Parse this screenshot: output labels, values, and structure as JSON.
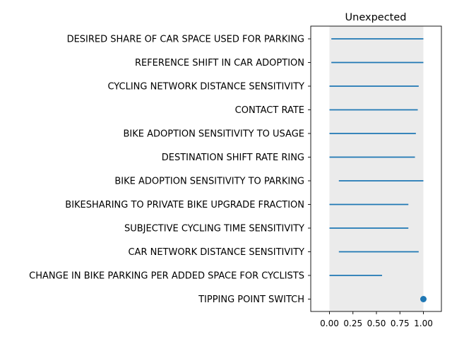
{
  "chart_data": {
    "type": "range",
    "title": "Unexpected",
    "xlabel": "",
    "ylabel": "",
    "xlim": [
      -0.1,
      1.1
    ],
    "x_ticks": [
      0.0,
      0.25,
      0.5,
      0.75,
      1.0
    ],
    "x_tick_labels": [
      "0.00",
      "0.25",
      "0.50",
      "0.75",
      "1.00"
    ],
    "shaded_band": [
      0.0,
      1.0
    ],
    "band_color": "#ebebeb",
    "series_color": "#1f77b4",
    "grid": false,
    "rows": [
      {
        "label": "DESIRED SHARE OF CAR SPACE USED FOR PARKING",
        "low": 0.02,
        "high": 1.0
      },
      {
        "label": "REFERENCE SHIFT IN CAR ADOPTION",
        "low": 0.02,
        "high": 1.0
      },
      {
        "label": "CYCLING NETWORK DISTANCE SENSITIVITY",
        "low": 0.0,
        "high": 0.95
      },
      {
        "label": "CONTACT RATE",
        "low": 0.0,
        "high": 0.94
      },
      {
        "label": "BIKE ADOPTION SENSITIVITY TO USAGE",
        "low": 0.0,
        "high": 0.92
      },
      {
        "label": "DESTINATION SHIFT RATE RING",
        "low": 0.0,
        "high": 0.91
      },
      {
        "label": "BIKE ADOPTION SENSITIVITY TO PARKING",
        "low": 0.1,
        "high": 1.0
      },
      {
        "label": "BIKESHARING TO PRIVATE BIKE UPGRADE FRACTION",
        "low": 0.0,
        "high": 0.84
      },
      {
        "label": "SUBJECTIVE CYCLING TIME SENSITIVITY",
        "low": 0.0,
        "high": 0.84
      },
      {
        "label": "CAR NETWORK DISTANCE SENSITIVITY",
        "low": 0.1,
        "high": 0.95
      },
      {
        "label": "CHANGE IN BIKE PARKING PER ADDED SPACE FOR CYCLISTS",
        "low": 0.0,
        "high": 0.56
      },
      {
        "label": "TIPPING POINT SWITCH",
        "low": 1.0,
        "high": 1.0
      }
    ]
  }
}
